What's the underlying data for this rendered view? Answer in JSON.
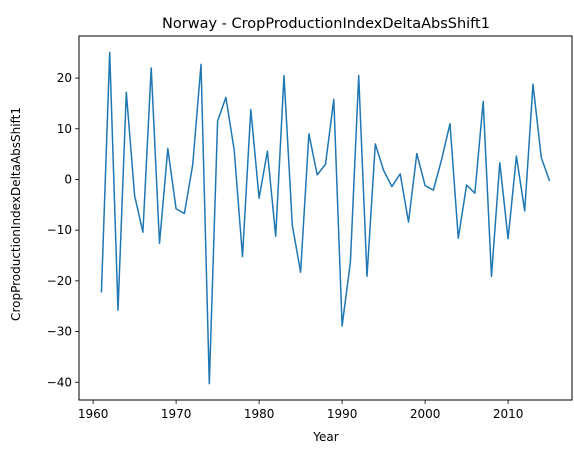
{
  "chart_data": {
    "type": "line",
    "title": "Norway - CropProductionIndexDeltaAbsShift1",
    "xlabel": "Year",
    "ylabel": "CropProductionIndexDeltaAbsShift1",
    "xlim": [
      1958.3,
      2017.7
    ],
    "ylim": [
      -43.5,
      28.3
    ],
    "xticks": [
      1960,
      1970,
      1980,
      1990,
      2000,
      2010
    ],
    "yticks": [
      -40,
      -30,
      -20,
      -10,
      0,
      10,
      20
    ],
    "grid": false,
    "line_color": "#1f77b4",
    "series": [
      {
        "x": [
          1961,
          1962,
          1963,
          1964,
          1965,
          1966,
          1967,
          1968,
          1969,
          1970,
          1971,
          1972,
          1973,
          1974,
          1975,
          1976,
          1977,
          1978,
          1979,
          1980,
          1981,
          1982,
          1983,
          1984,
          1985,
          1986,
          1987,
          1988,
          1989,
          1990,
          1991,
          1992,
          1993,
          1994,
          1995,
          1996,
          1997,
          1998,
          1999,
          2000,
          2001,
          2002,
          2003,
          2004,
          2005,
          2006,
          2007,
          2008,
          2009,
          2010,
          2011,
          2012,
          2013,
          2014,
          2015
        ],
        "values": [
          -22.3,
          25.1,
          -25.8,
          17.2,
          -3.2,
          -10.4,
          22.0,
          -12.6,
          6.1,
          -5.8,
          -6.7,
          2.9,
          22.7,
          -40.3,
          11.5,
          16.2,
          5.8,
          -15.2,
          13.8,
          -3.7,
          5.6,
          -11.2,
          20.5,
          -9.0,
          -18.3,
          9.0,
          0.9,
          3.0,
          15.8,
          -28.9,
          -16.3,
          20.5,
          -19.1,
          7.0,
          1.8,
          -1.4,
          1.1,
          -8.4,
          5.1,
          -1.2,
          -2.1,
          4.0,
          11.0,
          -11.6,
          -1.1,
          -2.7,
          15.4,
          -19.1,
          3.3,
          -11.7,
          4.6,
          -6.2,
          18.8,
          4.3,
          -0.3
        ]
      }
    ]
  }
}
